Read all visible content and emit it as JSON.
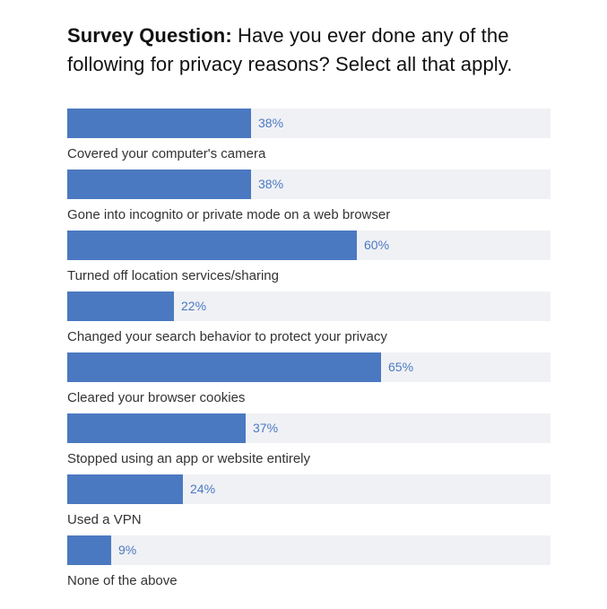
{
  "title": {
    "lead": "Survey Question:",
    "text": "Have you ever done any of the following for privacy reasons? Select all that apply."
  },
  "colors": {
    "bar": "#4b79c1",
    "track": "#f0f1f5",
    "value_text": "#4b79c1"
  },
  "chart_data": {
    "type": "bar",
    "orientation": "horizontal",
    "categories": [
      "Covered your computer's camera",
      "Gone into incognito or private mode on a web browser",
      "Turned off location services/sharing",
      "Changed your search behavior to protect your privacy",
      "Cleared your browser cookies",
      "Stopped using an app or website entirely",
      "Used a VPN",
      "None of the above"
    ],
    "values": [
      38,
      38,
      60,
      22,
      65,
      37,
      24,
      9
    ],
    "value_labels": [
      "38%",
      "38%",
      "60%",
      "22%",
      "65%",
      "37%",
      "24%",
      "9%"
    ],
    "xlim": [
      0,
      100
    ],
    "grid": false,
    "legend": "none"
  }
}
